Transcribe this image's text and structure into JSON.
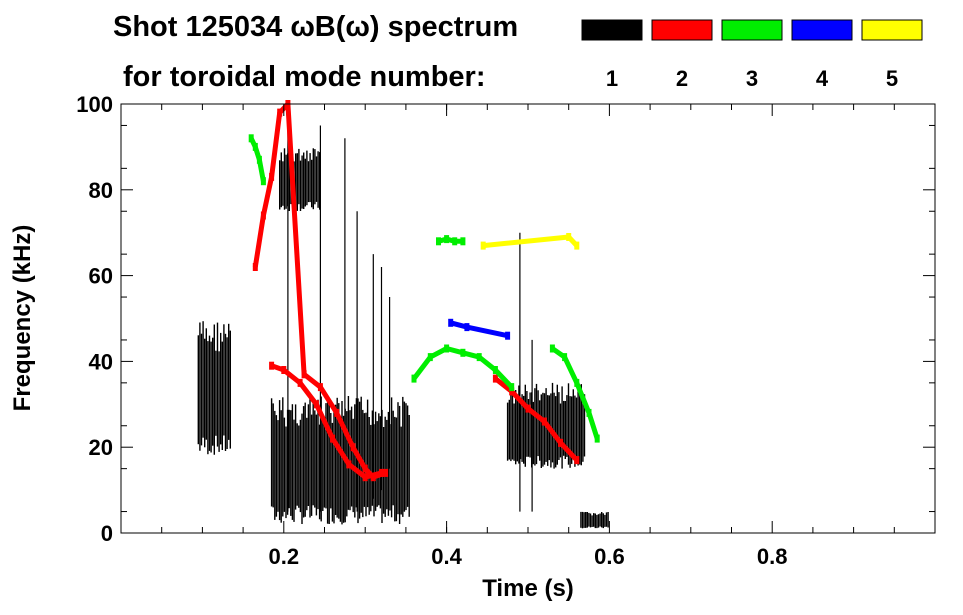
{
  "chart_data": {
    "type": "heatmap",
    "title_line1": "Shot 125034 ωB(ω) spectrum",
    "title_line2": "for toroidal mode number:",
    "xlabel": "Time (s)",
    "ylabel": "Frequency (kHz)",
    "xlim": [
      0.0,
      1.0
    ],
    "ylim": [
      0,
      100
    ],
    "x_ticks": [
      {
        "value": 0.2,
        "label": "0.2"
      },
      {
        "value": 0.4,
        "label": "0.4"
      },
      {
        "value": 0.6,
        "label": "0.6"
      },
      {
        "value": 0.8,
        "label": "0.8"
      }
    ],
    "y_ticks": [
      {
        "value": 0,
        "label": "0"
      },
      {
        "value": 20,
        "label": "20"
      },
      {
        "value": 40,
        "label": "40"
      },
      {
        "value": 60,
        "label": "60"
      },
      {
        "value": 80,
        "label": "80"
      },
      {
        "value": 100,
        "label": "100"
      }
    ],
    "legend": [
      {
        "label": "1",
        "color": "#000000"
      },
      {
        "label": "2",
        "color": "#ff0000"
      },
      {
        "label": "3",
        "color": "#00ee00"
      },
      {
        "label": "4",
        "color": "#0000ff"
      },
      {
        "label": "5",
        "color": "#ffff00"
      }
    ],
    "regions": [
      {
        "mode": 1,
        "name": "n1-early-band",
        "t": [
          0.095,
          0.135
        ],
        "f": [
          18,
          50
        ]
      },
      {
        "mode": 1,
        "name": "n1-main-burst",
        "t": [
          0.185,
          0.355
        ],
        "f": [
          2,
          32
        ]
      },
      {
        "mode": 1,
        "name": "n1-80khz-cluster",
        "t": [
          0.195,
          0.245
        ],
        "f": [
          75,
          90
        ]
      },
      {
        "mode": 1,
        "name": "n1-late-burst",
        "t": [
          0.475,
          0.57
        ],
        "f": [
          15,
          35
        ]
      },
      {
        "mode": 1,
        "name": "n1-end-blob",
        "t": [
          0.565,
          0.6
        ],
        "f": [
          1,
          5
        ]
      }
    ],
    "streaks": [
      {
        "mode": 1,
        "t": 0.205,
        "f": [
          5,
          95
        ]
      },
      {
        "mode": 1,
        "t": 0.245,
        "f": [
          5,
          95
        ]
      },
      {
        "mode": 1,
        "t": 0.275,
        "f": [
          3,
          92
        ]
      },
      {
        "mode": 1,
        "t": 0.29,
        "f": [
          5,
          75
        ]
      },
      {
        "mode": 1,
        "t": 0.31,
        "f": [
          8,
          65
        ]
      },
      {
        "mode": 1,
        "t": 0.32,
        "f": [
          10,
          62
        ]
      },
      {
        "mode": 1,
        "t": 0.33,
        "f": [
          15,
          55
        ]
      },
      {
        "mode": 1,
        "t": 0.49,
        "f": [
          5,
          70
        ]
      },
      {
        "mode": 1,
        "t": 0.505,
        "f": [
          5,
          45
        ]
      }
    ],
    "series": [
      {
        "name": "n2-chirp",
        "mode": 2,
        "x": [
          0.165,
          0.175,
          0.185,
          0.195,
          0.205,
          0.225,
          0.245,
          0.265,
          0.285,
          0.3,
          0.31,
          0.325
        ],
        "y": [
          62,
          74,
          83,
          98,
          100,
          37,
          34,
          28,
          20,
          15,
          13,
          14
        ]
      },
      {
        "name": "n2-main-sweep",
        "mode": 2,
        "x": [
          0.185,
          0.2,
          0.22,
          0.24,
          0.26,
          0.28,
          0.3,
          0.32
        ],
        "y": [
          39,
          38,
          35,
          30,
          22,
          16,
          13,
          14
        ]
      },
      {
        "name": "n2-late-sweep",
        "mode": 2,
        "x": [
          0.46,
          0.48,
          0.5,
          0.52,
          0.54,
          0.56
        ],
        "y": [
          36,
          33,
          29,
          26,
          21,
          17
        ]
      },
      {
        "name": "n3-early",
        "mode": 3,
        "x": [
          0.16,
          0.165,
          0.17,
          0.175
        ],
        "y": [
          92,
          90,
          87,
          82
        ]
      },
      {
        "name": "n3-arc",
        "mode": 3,
        "x": [
          0.36,
          0.38,
          0.4,
          0.42,
          0.44,
          0.46,
          0.48
        ],
        "y": [
          36,
          41,
          43,
          42,
          41,
          38,
          34
        ]
      },
      {
        "name": "n3-68khz",
        "mode": 3,
        "x": [
          0.39,
          0.4,
          0.41,
          0.42
        ],
        "y": [
          68,
          68.5,
          68,
          68
        ]
      },
      {
        "name": "n3-late",
        "mode": 3,
        "x": [
          0.53,
          0.545,
          0.56,
          0.575,
          0.585
        ],
        "y": [
          43,
          41,
          35,
          28,
          22
        ]
      },
      {
        "name": "n4-blips",
        "mode": 4,
        "x": [
          0.405,
          0.425,
          0.475
        ],
        "y": [
          49,
          48,
          46
        ]
      },
      {
        "name": "n5-blips",
        "mode": 5,
        "x": [
          0.445,
          0.55,
          0.56
        ],
        "y": [
          67,
          69,
          67
        ]
      }
    ]
  }
}
